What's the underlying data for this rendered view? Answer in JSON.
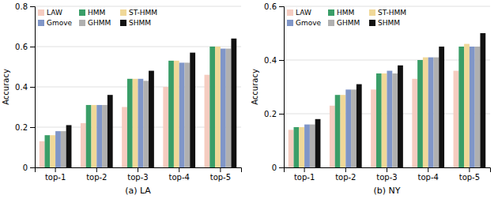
{
  "chart_data": [
    {
      "type": "bar",
      "x_label": "(a) LA",
      "y_label": "Accuracy",
      "categories": [
        "top-1",
        "top-2",
        "top-3",
        "top-4",
        "top-5"
      ],
      "series": [
        {
          "name": "LAW",
          "color": "#f5ccc0",
          "values": [
            0.13,
            0.22,
            0.3,
            0.4,
            0.46
          ]
        },
        {
          "name": "HMM",
          "color": "#3a9e68",
          "values": [
            0.16,
            0.31,
            0.44,
            0.53,
            0.6
          ]
        },
        {
          "name": "ST-HMM",
          "color": "#f0d898",
          "values": [
            0.16,
            0.31,
            0.44,
            0.53,
            0.6
          ]
        },
        {
          "name": "Gmove",
          "color": "#8096c8",
          "values": [
            0.18,
            0.31,
            0.44,
            0.52,
            0.59
          ]
        },
        {
          "name": "GHMM",
          "color": "#b0b0b0",
          "values": [
            0.18,
            0.31,
            0.43,
            0.52,
            0.59
          ]
        },
        {
          "name": "SHMM",
          "color": "#111111",
          "values": [
            0.21,
            0.36,
            0.48,
            0.57,
            0.64
          ]
        }
      ],
      "ylim": [
        0,
        0.8
      ],
      "yticks": [
        0,
        0.2,
        0.4,
        0.6,
        0.8
      ],
      "grid": true,
      "legend": "upper left"
    },
    {
      "type": "bar",
      "x_label": "(b) NY",
      "y_label": "Accuracy",
      "categories": [
        "top-1",
        "top-2",
        "top-3",
        "top-4",
        "top-5"
      ],
      "series": [
        {
          "name": "LAW",
          "color": "#f5ccc0",
          "values": [
            0.14,
            0.23,
            0.29,
            0.33,
            0.36
          ]
        },
        {
          "name": "HMM",
          "color": "#3a9e68",
          "values": [
            0.15,
            0.27,
            0.35,
            0.4,
            0.45
          ]
        },
        {
          "name": "ST-HMM",
          "color": "#f0d898",
          "values": [
            0.15,
            0.27,
            0.35,
            0.41,
            0.46
          ]
        },
        {
          "name": "Gmove",
          "color": "#8096c8",
          "values": [
            0.16,
            0.29,
            0.36,
            0.41,
            0.45
          ]
        },
        {
          "name": "GHMM",
          "color": "#b0b0b0",
          "values": [
            0.16,
            0.29,
            0.35,
            0.41,
            0.45
          ]
        },
        {
          "name": "SHMM",
          "color": "#111111",
          "values": [
            0.18,
            0.31,
            0.38,
            0.45,
            0.5
          ]
        }
      ],
      "ylim": [
        0,
        0.6
      ],
      "yticks": [
        0,
        0.2,
        0.4,
        0.6
      ],
      "grid": true,
      "legend": "upper left"
    }
  ]
}
